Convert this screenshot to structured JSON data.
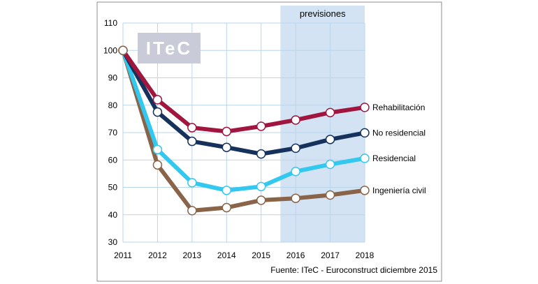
{
  "chart_data": {
    "type": "line",
    "title": "",
    "xlabel": "",
    "ylabel": "",
    "x": [
      "2011",
      "2012",
      "2013",
      "2014",
      "2015",
      "2016",
      "2017",
      "2018"
    ],
    "ylim": [
      30,
      110
    ],
    "yticks": [
      "30",
      "40",
      "50",
      "60",
      "70",
      "80",
      "90",
      "100",
      "110"
    ],
    "grid": true,
    "forecast_band": {
      "label": "previsiones",
      "from_x": 4.5,
      "to_x": 7
    },
    "series": [
      {
        "name": "Rehabilitación",
        "color": "#a0163f",
        "values": [
          100,
          82,
          71.8,
          70.4,
          72.3,
          74.6,
          77.3,
          79.2
        ]
      },
      {
        "name": "No residencial",
        "color": "#16325c",
        "values": [
          100,
          77.5,
          66.8,
          64.6,
          62.2,
          64.3,
          67.5,
          69.9
        ]
      },
      {
        "name": "Residencial",
        "color": "#33c8f0",
        "values": [
          100,
          63.8,
          51.7,
          48.9,
          50.3,
          55.8,
          58.4,
          60.6
        ]
      },
      {
        "name": "Ingeniería civil",
        "color": "#8a6448",
        "values": [
          100,
          58.2,
          41.5,
          42.6,
          45.3,
          46,
          47.2,
          48.9
        ]
      }
    ]
  },
  "logo": {
    "text": "ITeC"
  },
  "source_note": "Fuente: ITeC - Euroconstruct diciembre 2015",
  "colors": {
    "forecast_band": "#d3e3f3",
    "gridline": "#b9d5ec",
    "logo_bg": "#c9ccd8",
    "border": "#8c8c8c"
  }
}
